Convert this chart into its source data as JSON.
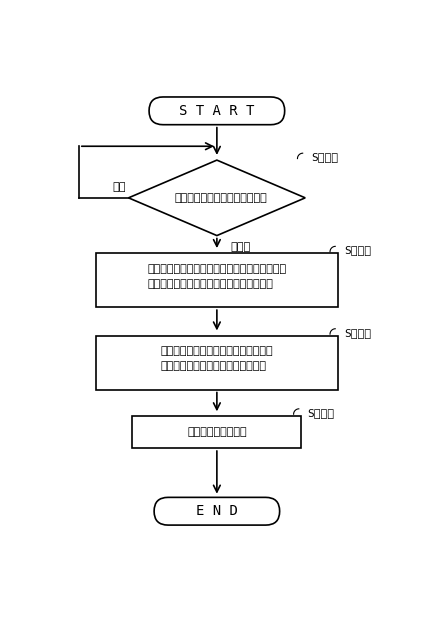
{
  "title": "S T A R T",
  "end_label": "E N D",
  "step_labels": [
    "S２０１",
    "S２０２",
    "S２０３",
    "S２０４"
  ],
  "diamond_text": "クリック操作を受け付けたか？",
  "diamond_no": "Ｎｏ",
  "diamond_yes": "Ｙｅｓ",
  "box_texts": [
    "歩行ルートの形成に必要な各種情報を取得し、\n取得した情報を地図情報編集部に伝達する",
    "歩行ルートが明示されるように、地図\n情報編集部に地図情報を編集させる",
    "編集結果を出力する"
  ],
  "bg_color": "#ffffff",
  "box_color": "#ffffff",
  "line_color": "#000000",
  "text_color": "#000000",
  "font_size": 9,
  "label_font_size": 8
}
